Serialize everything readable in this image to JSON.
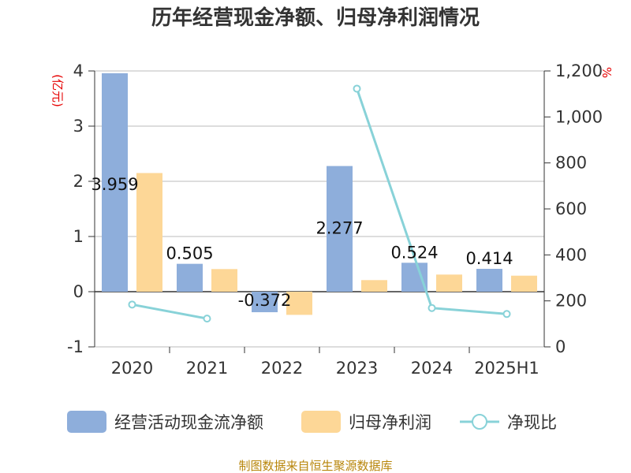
{
  "chart_data": {
    "type": "bar",
    "title": "历年经营现金净额、归母净利润情况",
    "categories": [
      "2020",
      "2021",
      "2022",
      "2023",
      "2024",
      "2025H1"
    ],
    "left_axis": {
      "unit": "(亿元)",
      "ylim": [
        -1,
        4
      ],
      "ticks": [
        "-1",
        "0",
        "1",
        "2",
        "3",
        "4"
      ]
    },
    "right_axis": {
      "unit": "%",
      "ylim": [
        0,
        1200
      ],
      "ticks": [
        "0",
        "200",
        "400",
        "600",
        "800",
        "1,000",
        "1,200"
      ]
    },
    "series": [
      {
        "name": "经营活动现金流净额",
        "type": "bar",
        "axis": "left",
        "values": [
          3.959,
          0.505,
          -0.372,
          2.277,
          0.524,
          0.414
        ],
        "labels": [
          "3.959",
          "0.505",
          "-0.372",
          "2.277",
          "0.524",
          "0.414"
        ]
      },
      {
        "name": "归母净利润",
        "type": "bar",
        "axis": "left",
        "values": [
          2.15,
          0.41,
          -0.42,
          0.21,
          0.31,
          0.29
        ]
      },
      {
        "name": "净现比",
        "type": "line",
        "axis": "right",
        "segments": [
          {
            "x": [
              "2020",
              "2021"
            ],
            "y": [
              184,
              123
            ]
          },
          {
            "x": [
              "2023",
              "2024",
              "2025H1"
            ],
            "y": [
              1123,
              169,
              143
            ]
          }
        ]
      }
    ],
    "grid": true,
    "legend_position": "bottom"
  },
  "colors": {
    "bar1": "#8eaedb",
    "bar2": "#fdd797",
    "line": "#88d2d8",
    "unit": "#e60000",
    "source": "#b8860b"
  },
  "source": "制图数据来自恒生聚源数据库"
}
